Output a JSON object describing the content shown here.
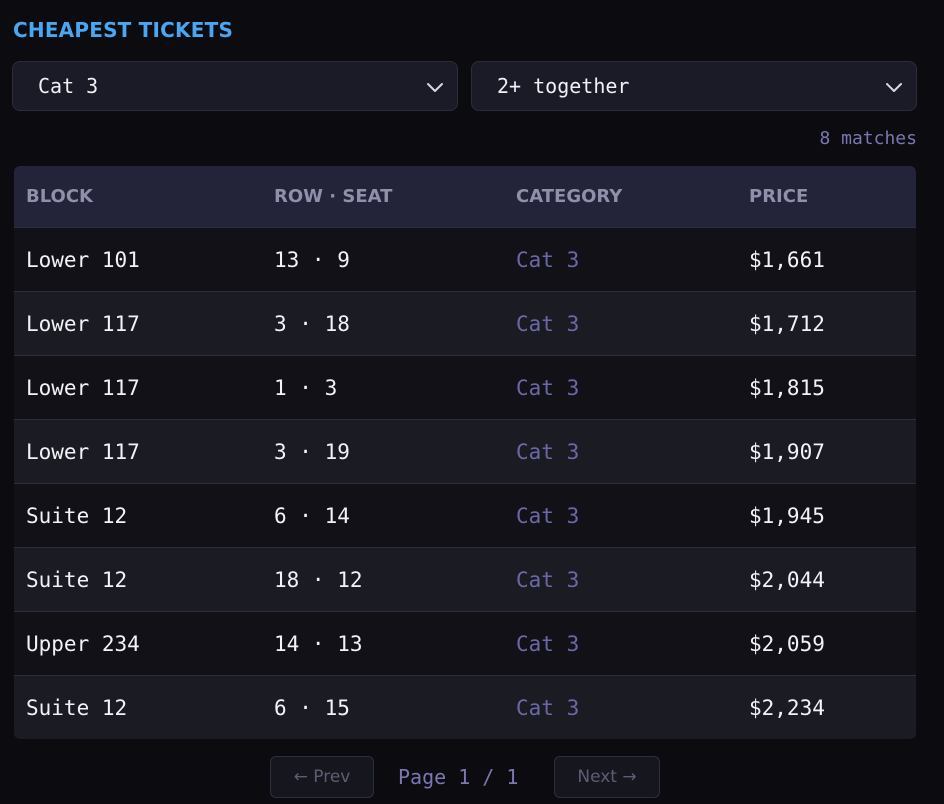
{
  "header": {
    "title": "CHEAPEST TICKETS"
  },
  "filters": {
    "category": {
      "value": "Cat 3",
      "icon": "chevron-down-icon"
    },
    "quantity": {
      "value": "2+ together",
      "icon": "chevron-down-icon"
    }
  },
  "results": {
    "count_label": "8 matches"
  },
  "table": {
    "columns": [
      "BLOCK",
      "ROW · SEAT",
      "CATEGORY",
      "PRICE"
    ],
    "rows": [
      {
        "block": "Lower 101",
        "row_seat": "13 · 9",
        "category": "Cat 3",
        "price": "$1,661"
      },
      {
        "block": "Lower 117",
        "row_seat": "3 · 18",
        "category": "Cat 3",
        "price": "$1,712"
      },
      {
        "block": "Lower 117",
        "row_seat": "1 · 3",
        "category": "Cat 3",
        "price": "$1,815"
      },
      {
        "block": "Lower 117",
        "row_seat": "3 · 19",
        "category": "Cat 3",
        "price": "$1,907"
      },
      {
        "block": "Suite 12",
        "row_seat": "6 · 14",
        "category": "Cat 3",
        "price": "$1,945"
      },
      {
        "block": "Suite 12",
        "row_seat": "18 · 12",
        "category": "Cat 3",
        "price": "$2,044"
      },
      {
        "block": "Upper 234",
        "row_seat": "14 · 13",
        "category": "Cat 3",
        "price": "$2,059"
      },
      {
        "block": "Suite 12",
        "row_seat": "6 · 15",
        "category": "Cat 3",
        "price": "$2,234"
      }
    ]
  },
  "pagination": {
    "prev_label": "← Prev",
    "page_label": "Page 1 / 1",
    "next_label": "Next →"
  },
  "colors": {
    "accent": "#4aa6f0",
    "category_text": "#6b68a8",
    "background": "#0b0b10"
  }
}
